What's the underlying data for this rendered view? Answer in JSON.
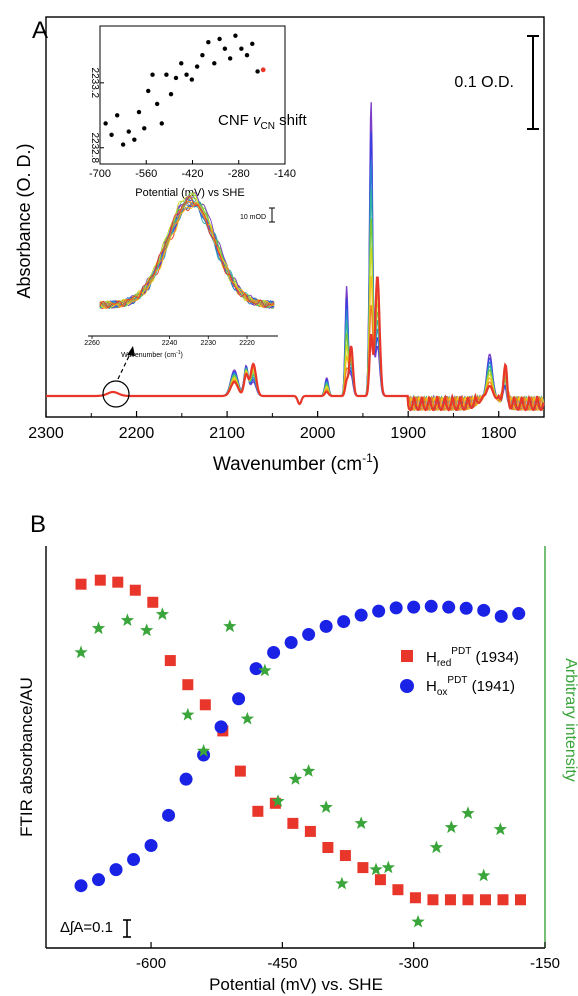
{
  "colors": {
    "red": "#e8362a",
    "blue": "#1a22e6",
    "green": "#3aa53a",
    "black": "#000000",
    "spectra": [
      "#e8362a",
      "#f08020",
      "#f2c21a",
      "#c9d92a",
      "#7cc83a",
      "#2fb1a3",
      "#2a7fd4",
      "#3a3fe0",
      "#7a3ec8"
    ]
  },
  "panel_a": {
    "letter": "A",
    "ylabel": "Absorbance (O. D.)",
    "xlabel": "Wavenumber (cm",
    "xlabel_sup": "-1",
    "xlabel_close": ")",
    "scale_bar_label": "0.1 O.D.",
    "inset_top": {
      "label_prefix": "CNF ",
      "label_nu": "v",
      "label_sub": "CN",
      "label_suffix": " shift",
      "xlabel": "Potential (mV) vs SHE"
    },
    "inset_mid": {
      "scale_label": "10 mOD",
      "xlabel": "Wavenumber (cm",
      "xlabel_sup": "-1",
      "xlabel_close": ")"
    }
  },
  "panel_b": {
    "letter": "B",
    "ylabel": "FTIR absorbance/AU",
    "ylabel_right": "Arbitrary intensity",
    "xlabel": "Potential (mV) vs. SHE",
    "scale_label": "ΔʃA=0.1",
    "legend": [
      {
        "base": "H",
        "sub": "red",
        "sup": "PDT",
        "suffix": " (1934)"
      },
      {
        "base": "H",
        "sub": "ox",
        "sup": "PDT",
        "suffix": " (1941)"
      }
    ]
  },
  "chart_data": [
    {
      "type": "line",
      "panel": "A",
      "xlabel": "Wavenumber (cm-1)",
      "ylabel": "Absorbance (O. D.)",
      "xlim": [
        2300,
        1750
      ],
      "x_ticks": [
        2300,
        2200,
        2100,
        2000,
        1900,
        1800
      ],
      "peaks_cm1": [
        2226,
        2092,
        2079,
        2071,
        1968,
        1963,
        1941,
        1934,
        1810,
        1793
      ],
      "scale_bar": "0.1 O.D.",
      "grid": false
    },
    {
      "type": "scatter",
      "panel": "A inset",
      "title": "CNF vCN shift",
      "xlabel": "Potential (mV) vs SHE",
      "xlim": [
        -700,
        -140
      ],
      "ylim": [
        2232.7,
        2233.55
      ],
      "x_ticks": [
        -700,
        -560,
        -420,
        -280,
        -140
      ],
      "y_ticks": [
        2232.8,
        2233.2
      ],
      "points": [
        {
          "x": -683,
          "y": 2232.95
        },
        {
          "x": -665,
          "y": 2232.88
        },
        {
          "x": -648,
          "y": 2233.0
        },
        {
          "x": -630,
          "y": 2232.82
        },
        {
          "x": -613,
          "y": 2232.9
        },
        {
          "x": -596,
          "y": 2232.85
        },
        {
          "x": -582,
          "y": 2233.02
        },
        {
          "x": -566,
          "y": 2232.92
        },
        {
          "x": -554,
          "y": 2233.15
        },
        {
          "x": -541,
          "y": 2233.25
        },
        {
          "x": -527,
          "y": 2233.07
        },
        {
          "x": -513,
          "y": 2232.95
        },
        {
          "x": -499,
          "y": 2233.25
        },
        {
          "x": -485,
          "y": 2233.13
        },
        {
          "x": -470,
          "y": 2233.23
        },
        {
          "x": -454,
          "y": 2233.32
        },
        {
          "x": -438,
          "y": 2233.25
        },
        {
          "x": -422,
          "y": 2233.22
        },
        {
          "x": -406,
          "y": 2233.3
        },
        {
          "x": -390,
          "y": 2233.37
        },
        {
          "x": -372,
          "y": 2233.45
        },
        {
          "x": -354,
          "y": 2233.32
        },
        {
          "x": -338,
          "y": 2233.47
        },
        {
          "x": -322,
          "y": 2233.41
        },
        {
          "x": -306,
          "y": 2233.35
        },
        {
          "x": -290,
          "y": 2233.49
        },
        {
          "x": -272,
          "y": 2233.41
        },
        {
          "x": -255,
          "y": 2233.37
        },
        {
          "x": -239,
          "y": 2233.44
        },
        {
          "x": -223,
          "y": 2233.27
        }
      ],
      "highlight": {
        "x": -206,
        "y": 2233.28,
        "color": "#e8362a"
      }
    },
    {
      "type": "line",
      "panel": "A inset (overlay spectra)",
      "xlabel": "Wavenumber (cm-1)",
      "xlim": [
        2260,
        2212
      ],
      "x_ticks": [
        2260,
        2240,
        2230,
        2220
      ],
      "peak_cm1": 2234,
      "scale": "10 mOD"
    },
    {
      "type": "scatter",
      "panel": "B",
      "xlabel": "Potential (mV) vs. SHE",
      "ylabel": "FTIR absorbance/AU",
      "ylabel_right": "Arbitrary intensity",
      "xlim": [
        -720,
        -150
      ],
      "ylim": [
        0,
        1
      ],
      "x_ticks": [
        -600,
        -450,
        -300,
        -150
      ],
      "series": [
        {
          "name": "Hred PDT (1934)",
          "marker": "square",
          "color": "#e8362a",
          "x": [
            -680,
            -658,
            -638,
            -618,
            -598,
            -578,
            -558,
            -538,
            -518,
            -498,
            -478,
            -458,
            -438,
            -418,
            -398,
            -378,
            -358,
            -338,
            -318,
            -298,
            -278,
            -258,
            -238,
            -218,
            -198,
            -178
          ],
          "y": [
            0.905,
            0.915,
            0.91,
            0.89,
            0.86,
            0.715,
            0.655,
            0.605,
            0.54,
            0.44,
            0.34,
            0.36,
            0.31,
            0.29,
            0.25,
            0.23,
            0.2,
            0.17,
            0.145,
            0.125,
            0.12,
            0.12,
            0.12,
            0.12,
            0.12,
            0.12
          ]
        },
        {
          "name": "Hox PDT (1941)",
          "marker": "circle",
          "color": "#1a22e6",
          "x": [
            -680,
            -660,
            -640,
            -620,
            -600,
            -580,
            -560,
            -540,
            -520,
            -500,
            -480,
            -460,
            -440,
            -420,
            -400,
            -380,
            -360,
            -340,
            -320,
            -300,
            -280,
            -260,
            -240,
            -220,
            -200,
            -180
          ],
          "y": [
            0.155,
            0.17,
            0.195,
            0.22,
            0.255,
            0.33,
            0.42,
            0.48,
            0.55,
            0.62,
            0.695,
            0.735,
            0.76,
            0.78,
            0.8,
            0.812,
            0.828,
            0.838,
            0.846,
            0.848,
            0.85,
            0.848,
            0.845,
            0.84,
            0.825,
            0.832
          ]
        },
        {
          "name": "",
          "marker": "star",
          "color": "#3aa53a",
          "x": [
            -680,
            -660,
            -627,
            -605,
            -587,
            -558,
            -540,
            -510,
            -490,
            -470,
            -455,
            -435,
            -420,
            -400,
            -382,
            -360,
            -343,
            -329,
            -295,
            -274,
            -257,
            -238,
            -220,
            -201
          ],
          "y": [
            0.735,
            0.795,
            0.815,
            0.79,
            0.83,
            0.58,
            0.49,
            0.8,
            0.57,
            0.69,
            0.365,
            0.42,
            0.44,
            0.35,
            0.16,
            0.31,
            0.195,
            0.2,
            0.065,
            0.25,
            0.3,
            0.335,
            0.18,
            0.295
          ]
        }
      ],
      "scale_bar": "ΔʃA=0.1",
      "legend_position": "right"
    }
  ]
}
